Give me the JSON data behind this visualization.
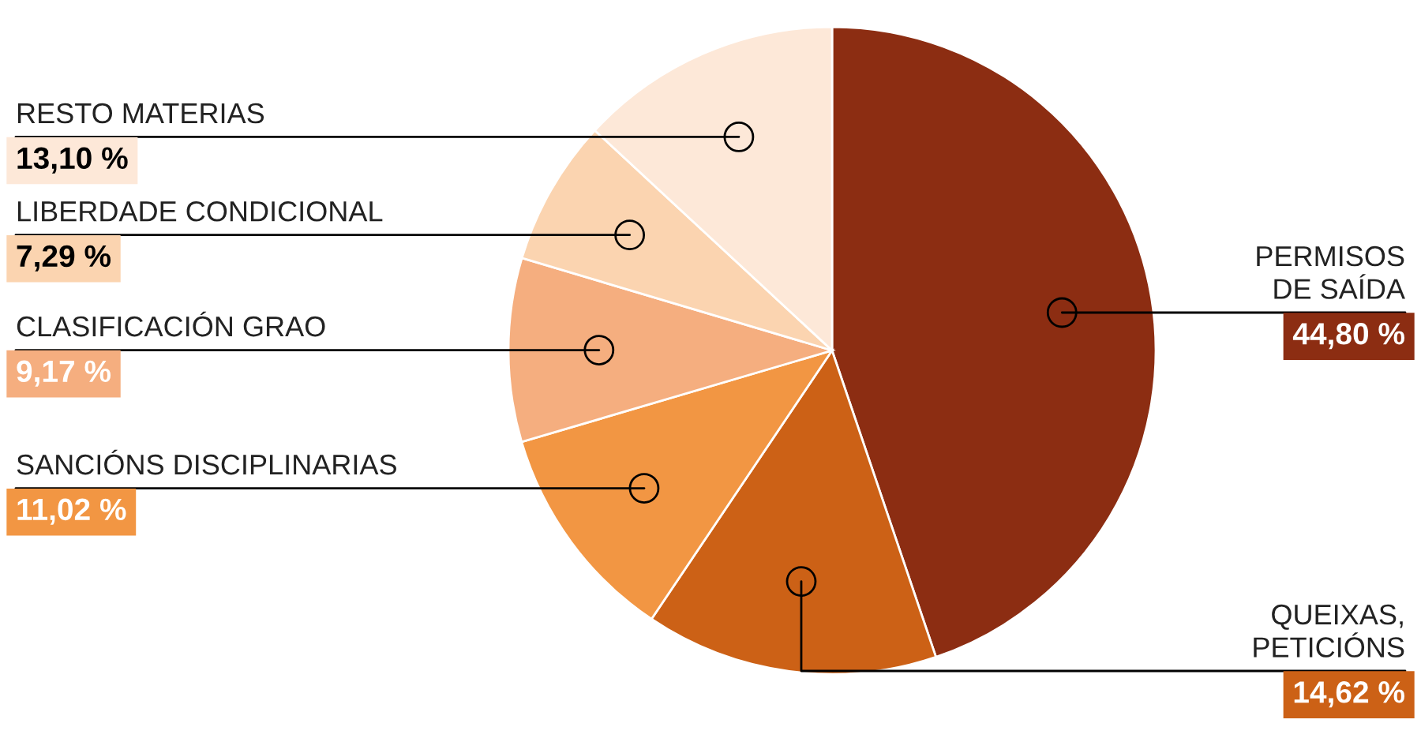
{
  "chart_data": {
    "type": "pie",
    "categories": [
      "PERMISOS\nDE SAÍDA",
      "QUEIXAS,\nPETICIÓNS",
      "SANCIÓNS DISCIPLINARIAS",
      "CLASIFICACIÓN GRAO",
      "LIBERDADE CONDICIONAL",
      "RESTO MATERIAS"
    ],
    "values": [
      44.8,
      14.62,
      11.02,
      9.17,
      7.29,
      13.1
    ],
    "value_labels": [
      "44,80 %",
      "14,62 %",
      "11,02 %",
      "9,17 %",
      "7,29 %",
      "13,10 %"
    ],
    "colors": [
      "#8c2d12",
      "#cc6116",
      "#f29643",
      "#f5ae7f",
      "#fbd4b0",
      "#fde8d8"
    ]
  }
}
